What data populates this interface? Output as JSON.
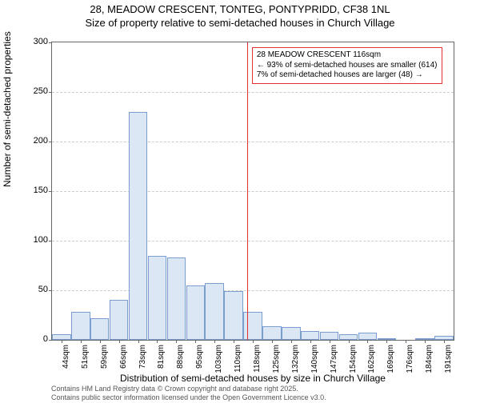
{
  "title_line1": "28, MEADOW CRESCENT, TONTEG, PONTYPRIDD, CF38 1NL",
  "title_line2": "Size of property relative to semi-detached houses in Church Village",
  "ylabel": "Number of semi-detached properties",
  "xlabel": "Distribution of semi-detached houses by size in Church Village",
  "footer_line1": "Contains HM Land Registry data © Crown copyright and database right 2025.",
  "footer_line2": "Contains public sector information licensed under the Open Government Licence v3.0.",
  "annotation": {
    "line1": "28 MEADOW CRESCENT 116sqm",
    "line2": "← 93% of semi-detached houses are smaller (614)",
    "line3": "7% of semi-detached houses are larger (48) →"
  },
  "chart": {
    "type": "histogram",
    "ylim": [
      0,
      300
    ],
    "ytick_step": 50,
    "xticks": [
      "44sqm",
      "51sqm",
      "59sqm",
      "66sqm",
      "73sqm",
      "81sqm",
      "88sqm",
      "95sqm",
      "103sqm",
      "110sqm",
      "118sqm",
      "125sqm",
      "132sqm",
      "140sqm",
      "147sqm",
      "154sqm",
      "162sqm",
      "169sqm",
      "176sqm",
      "184sqm",
      "191sqm"
    ],
    "values": [
      6,
      28,
      22,
      40,
      230,
      85,
      83,
      55,
      57,
      49,
      28,
      14,
      13,
      9,
      8,
      6,
      7,
      2,
      0,
      2,
      4
    ],
    "marker_index": 9.7,
    "bar_fill": "#dbe7f5",
    "bar_border": "#7a9ecf",
    "grid_color": "#cccccc",
    "background_color": "#ffffff",
    "marker_color": "#e03030",
    "title_fontsize": 13,
    "label_fontsize": 12,
    "tick_fontsize": 10
  }
}
